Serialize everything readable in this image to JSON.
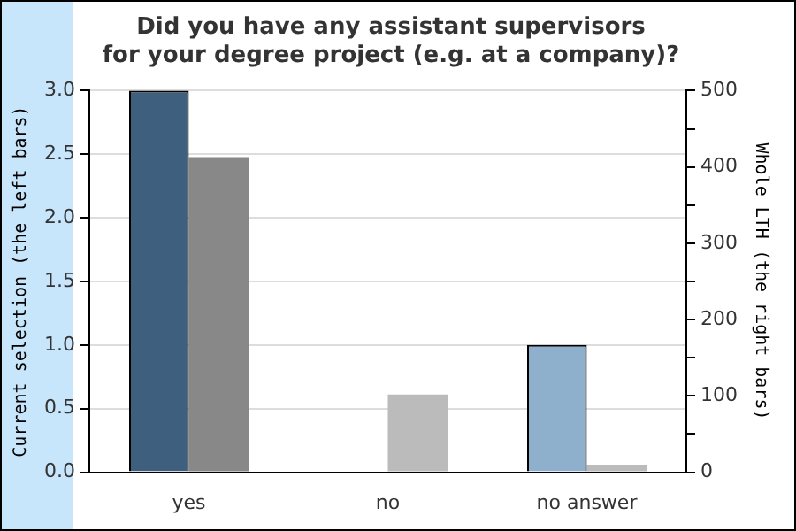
{
  "chart_data": {
    "type": "bar",
    "title": "Did you have any assistant supervisors\nfor your degree project (e.g. at a company)?",
    "ylabel": "Current selection (the left bars)",
    "y2label": "Whole LTH (the right bars)",
    "categories": [
      "yes",
      "no",
      "no answer"
    ],
    "series": [
      {
        "colors": [
          "#3e5f7d",
          "#3e5f7d",
          "#8fb0cc"
        ],
        "values": [
          3,
          0,
          1
        ]
      },
      {
        "colors": [
          "#888888",
          "#bbbbbb",
          "#bbbbbb"
        ],
        "values": [
          413,
          102,
          10
        ],
        "axis": "y2"
      }
    ],
    "ylim": [
      0,
      3
    ],
    "yticks": [
      {
        "value": 0,
        "label": "0.0"
      },
      {
        "value": 0.5,
        "label": "0.5"
      },
      {
        "value": 1,
        "label": "1.0"
      },
      {
        "value": 1.5,
        "label": "1.5"
      },
      {
        "value": 2,
        "label": "2.0"
      },
      {
        "value": 2.5,
        "label": "2.5"
      },
      {
        "value": 3,
        "label": "3.0"
      }
    ],
    "y2lim": [
      0,
      500
    ],
    "y2ticks": [
      0,
      {
        "value": 50,
        "label": null
      },
      100,
      {
        "value": 150,
        "label": null
      },
      200,
      {
        "value": 250,
        "label": null
      },
      300,
      {
        "value": 350,
        "label": null
      },
      400,
      {
        "value": 450,
        "label": null
      },
      500
    ],
    "grid": "y",
    "legend": false
  }
}
